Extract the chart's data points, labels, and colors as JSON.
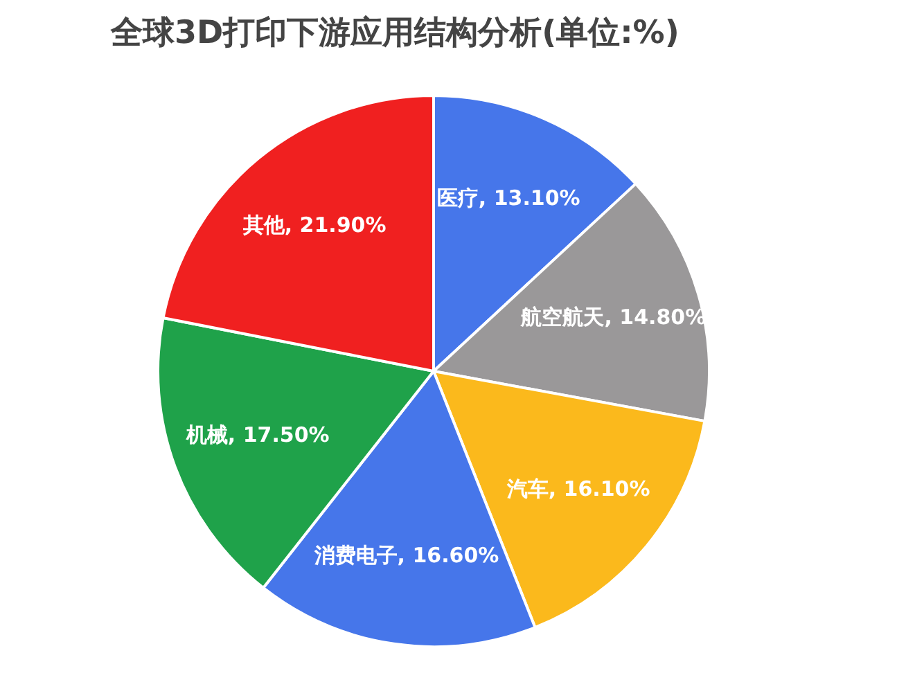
{
  "chart_data": {
    "type": "pie",
    "title": "全球3D打印下游应用结构分析(单位:%)",
    "categories": [
      "医疗",
      "航空航天",
      "汽车",
      "消费电子",
      "机械",
      "其他"
    ],
    "values": [
      13.1,
      14.8,
      16.1,
      16.6,
      17.5,
      21.9
    ],
    "colors": [
      "#4676ea",
      "#9a9899",
      "#fbb91c",
      "#4676ea",
      "#1fa24a",
      "#f02020"
    ],
    "value_labels": [
      "13.10%",
      "14.80%",
      "16.10%",
      "16.60%",
      "17.50%",
      "21.90%"
    ],
    "legend": false
  }
}
